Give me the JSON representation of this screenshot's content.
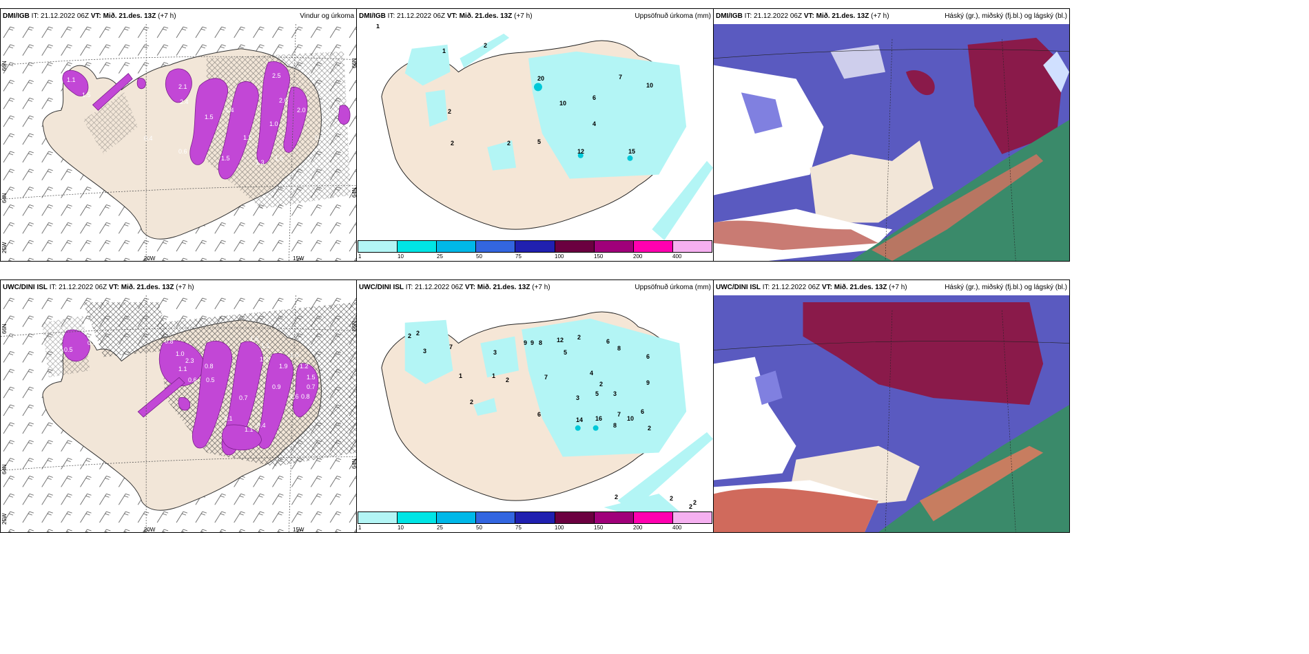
{
  "panels": [
    {
      "model": "DMI/IGB",
      "it": "IT: 21.12.2022 06Z",
      "vt": "VT: Mið. 21.des. 13Z",
      "lead": "(+7 h)",
      "title": "Vindur og úrkoma"
    },
    {
      "model": "DMI/IGB",
      "it": "IT: 21.12.2022 06Z",
      "vt": "VT: Mið. 21.des. 13Z",
      "lead": "(+7 h)",
      "title": "Uppsöfnuð úrkoma (mm)"
    },
    {
      "model": "DMI/IGB",
      "it": "IT: 21.12.2022 06Z",
      "vt": "VT: Mið. 21.des. 13Z",
      "lead": "(+7 h)",
      "title": "Háský (gr.), miðský (fj.bl.) og lágský (bl.)"
    },
    {
      "model": "UWC/DINI ISL",
      "it": "IT: 21.12.2022 06Z",
      "vt": "VT: Mið. 21.des. 13Z",
      "lead": "(+7 h)",
      "title": ""
    },
    {
      "model": "UWC/DINI ISL",
      "it": "IT: 21.12.2022 06Z",
      "vt": "VT: Mið. 21.des. 13Z",
      "lead": "(+7 h)",
      "title": "Uppsöfnuð úrkoma (mm)"
    },
    {
      "model": "UWC/DINI ISL",
      "it": "IT: 21.12.2022 06Z",
      "vt": "VT: Mið. 21.des. 13Z",
      "lead": "(+7 h)",
      "title": "Háský (gr.), miðský (fj.bl.) og lágský (bl.)"
    }
  ],
  "axis": {
    "lat66": "66N",
    "lat64": "64N",
    "lon25": "25W",
    "lon20": "20W",
    "lon15": "15W",
    "lat_r1": "66N",
    "lat_r2": "64N"
  },
  "legend": {
    "labels": [
      "1",
      "10",
      "25",
      "50",
      "75",
      "100",
      "150",
      "200",
      "400"
    ],
    "colors": [
      "#b3f5f5",
      "#00e5e5",
      "#00b8e8",
      "#3366e0",
      "#2020b0",
      "#6b0040",
      "#a0007a",
      "#ff00b0",
      "#f5b0f0"
    ]
  },
  "wind_values_top": [
    "1.1",
    "1.5",
    "2.1",
    "1.5",
    "2.5",
    "2.6",
    "1.4",
    "2.4",
    "1.5",
    "1.0",
    "2.0",
    "0.4",
    "0.6",
    "1.5",
    "1.3",
    "1.5",
    "0.5"
  ],
  "wind_values_bottom": [
    "0.5",
    "0.5",
    "0.6",
    "0.5",
    "0.8",
    "1.0",
    "2.3",
    "1.1",
    "0.8",
    "1.6",
    "1.1",
    "1.3",
    "0.7",
    "1.9",
    "1.0",
    "1.2",
    "1.5",
    "0.7",
    "0.8",
    "0.9",
    "2.6",
    "1.1",
    "0.4",
    "2.1",
    "0.5",
    "0.6"
  ],
  "precip_values_top": [
    "1",
    "2",
    "1",
    "2",
    "20",
    "7",
    "10",
    "6",
    "10",
    "4",
    "2",
    "2",
    "5",
    "12",
    "15"
  ],
  "precip_values_bottom": [
    "2",
    "2",
    "3",
    "7",
    "3",
    "9",
    "9",
    "8",
    "12",
    "2",
    "6",
    "8",
    "6",
    "1",
    "1",
    "2",
    "7",
    "5",
    "4",
    "3",
    "2",
    "5",
    "3",
    "9",
    "6",
    "2",
    "7",
    "6",
    "10",
    "14",
    "16",
    "8",
    "2",
    "2",
    "2",
    "2",
    "2"
  ]
}
